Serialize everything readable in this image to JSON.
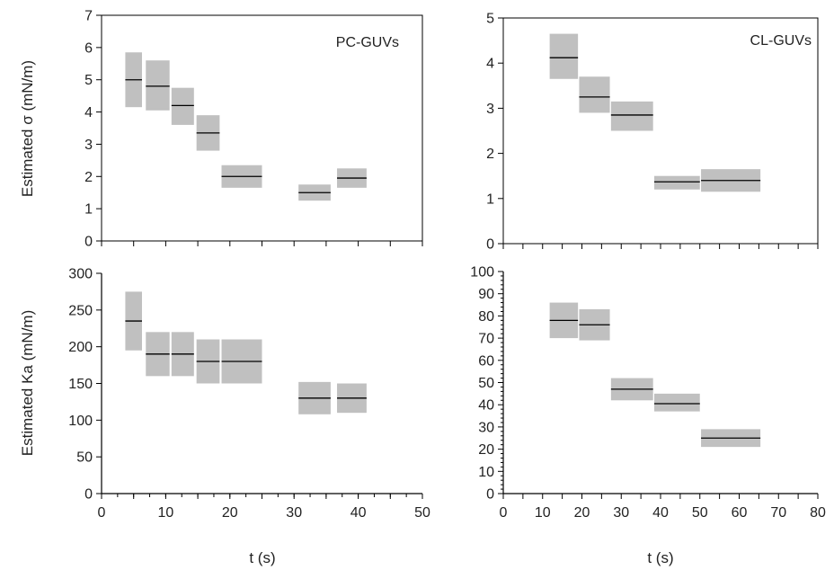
{
  "figure": {
    "x_axis_title": "t (s)",
    "y_axis_title_top": "Estimated σ (mN/m)",
    "y_axis_title_bottom": "Estimated Ka (mN/m)",
    "box_color": "#c0c0c0",
    "line_color": "#000000"
  },
  "chart_data": [
    {
      "type": "box",
      "panel": "top-left",
      "annotation": "PC-GUVs",
      "xlim": [
        0,
        50
      ],
      "ylim": [
        0,
        7
      ],
      "yticks": [
        0,
        1,
        2,
        3,
        4,
        5,
        6,
        7
      ],
      "xticks": [
        0,
        10,
        20,
        30,
        40,
        50
      ],
      "show_xtick_labels": false,
      "grid": false,
      "boxes": [
        {
          "x0": 3.7,
          "x1": 6.3,
          "low": 4.15,
          "high": 5.85,
          "median": 5.0
        },
        {
          "x0": 6.9,
          "x1": 10.6,
          "low": 4.05,
          "high": 5.6,
          "median": 4.8
        },
        {
          "x0": 10.9,
          "x1": 14.4,
          "low": 3.6,
          "high": 4.75,
          "median": 4.2
        },
        {
          "x0": 14.8,
          "x1": 18.4,
          "low": 2.8,
          "high": 3.9,
          "median": 3.35
        },
        {
          "x0": 18.7,
          "x1": 25.0,
          "low": 1.65,
          "high": 2.35,
          "median": 2.0
        },
        {
          "x0": 30.7,
          "x1": 35.7,
          "low": 1.25,
          "high": 1.75,
          "median": 1.5
        },
        {
          "x0": 36.7,
          "x1": 41.3,
          "low": 1.65,
          "high": 2.25,
          "median": 1.95
        }
      ]
    },
    {
      "type": "box",
      "panel": "top-right",
      "annotation": "CL-GUVs",
      "xlim": [
        0,
        80
      ],
      "ylim": [
        0,
        5
      ],
      "yticks": [
        0,
        1,
        2,
        3,
        4,
        5
      ],
      "xticks": [
        0,
        10,
        20,
        30,
        40,
        50,
        60,
        70,
        80
      ],
      "show_xtick_labels": false,
      "grid": false,
      "boxes": [
        {
          "x0": 11.8,
          "x1": 19.0,
          "low": 3.65,
          "high": 4.65,
          "median": 4.12
        },
        {
          "x0": 19.3,
          "x1": 27.1,
          "low": 2.9,
          "high": 3.7,
          "median": 3.25
        },
        {
          "x0": 27.4,
          "x1": 38.1,
          "low": 2.5,
          "high": 3.15,
          "median": 2.85
        },
        {
          "x0": 38.4,
          "x1": 50.0,
          "low": 1.2,
          "high": 1.5,
          "median": 1.37
        },
        {
          "x0": 50.3,
          "x1": 65.4,
          "low": 1.15,
          "high": 1.65,
          "median": 1.4
        }
      ]
    },
    {
      "type": "box",
      "panel": "bottom-left",
      "xlim": [
        0,
        50
      ],
      "ylim": [
        0,
        300
      ],
      "yticks": [
        0,
        50,
        100,
        150,
        200,
        250,
        300
      ],
      "xticks": [
        0,
        10,
        20,
        30,
        40,
        50
      ],
      "minor_xtick_step": 2.5,
      "show_xtick_labels": true,
      "grid": false,
      "boxes": [
        {
          "x0": 3.7,
          "x1": 6.3,
          "low": 195,
          "high": 275,
          "median": 235
        },
        {
          "x0": 6.9,
          "x1": 10.6,
          "low": 160,
          "high": 220,
          "median": 190
        },
        {
          "x0": 10.9,
          "x1": 14.4,
          "low": 160,
          "high": 220,
          "median": 190
        },
        {
          "x0": 14.8,
          "x1": 18.4,
          "low": 150,
          "high": 210,
          "median": 180
        },
        {
          "x0": 18.7,
          "x1": 25.0,
          "low": 150,
          "high": 210,
          "median": 180
        },
        {
          "x0": 30.7,
          "x1": 35.7,
          "low": 108,
          "high": 152,
          "median": 130
        },
        {
          "x0": 36.7,
          "x1": 41.3,
          "low": 110,
          "high": 150,
          "median": 130
        }
      ]
    },
    {
      "type": "box",
      "panel": "bottom-right",
      "xlim": [
        0,
        80
      ],
      "ylim": [
        0,
        100
      ],
      "yticks": [
        0,
        10,
        20,
        30,
        40,
        50,
        60,
        70,
        80,
        90,
        100
      ],
      "xticks": [
        0,
        10,
        20,
        30,
        40,
        50,
        60,
        70,
        80
      ],
      "minor_ytick_step": 2,
      "show_xtick_labels": true,
      "grid": false,
      "boxes": [
        {
          "x0": 11.8,
          "x1": 19.0,
          "low": 70,
          "high": 86,
          "median": 78
        },
        {
          "x0": 19.3,
          "x1": 27.1,
          "low": 69,
          "high": 83,
          "median": 76
        },
        {
          "x0": 27.4,
          "x1": 38.1,
          "low": 42,
          "high": 52,
          "median": 47
        },
        {
          "x0": 38.4,
          "x1": 50.0,
          "low": 37,
          "high": 45,
          "median": 40.5
        },
        {
          "x0": 50.3,
          "x1": 65.4,
          "low": 21,
          "high": 29,
          "median": 25
        }
      ]
    }
  ]
}
